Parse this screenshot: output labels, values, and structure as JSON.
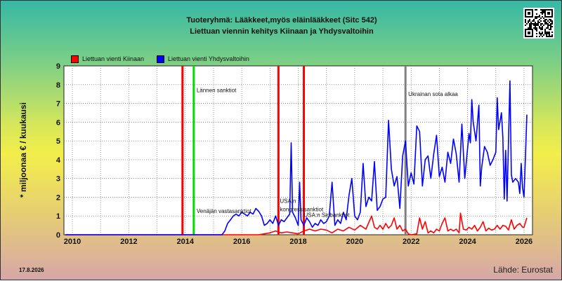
{
  "header": {
    "line1": "Tuoteryhmä: Lääkkeet,myös eläinlääkkeet (Sitc 542)",
    "line2": "Liettuan viennin kehitys  Kiinaan ja Yhdysvaltoihin"
  },
  "footer": {
    "date": "17.8.2026",
    "source": "Lähde: Eurostat"
  },
  "qr_icon": "qr-code-icon",
  "chart_data": {
    "type": "line",
    "ylabel": "* miljoonaa € / kuukausi",
    "xlabel": "",
    "xlim": [
      2009.7,
      2026.3
    ],
    "ylim": [
      0,
      9
    ],
    "yticks": [
      0,
      1,
      2,
      3,
      4,
      5,
      6,
      7,
      8,
      9
    ],
    "xticks": [
      "2010",
      "2012",
      "2014",
      "2016",
      "2018",
      "2020",
      "2022",
      "2024",
      "2026"
    ],
    "grid": true,
    "legend_position": "top-left",
    "series": [
      {
        "name": "Liettuan vienti Kiinaan",
        "color": "#ff0000",
        "points": [
          [
            2009.75,
            0
          ],
          [
            2016.6,
            0
          ],
          [
            2016.8,
            0.05
          ],
          [
            2017.0,
            0.1
          ],
          [
            2017.2,
            0.2
          ],
          [
            2017.4,
            0.1
          ],
          [
            2017.6,
            0.15
          ],
          [
            2017.8,
            0.1
          ],
          [
            2018.0,
            0.05
          ],
          [
            2018.2,
            0.2
          ],
          [
            2018.4,
            0.3
          ],
          [
            2018.6,
            0.2
          ],
          [
            2018.8,
            0.3
          ],
          [
            2019.0,
            0.25
          ],
          [
            2019.2,
            0.1
          ],
          [
            2019.4,
            0.3
          ],
          [
            2019.6,
            0.2
          ],
          [
            2019.8,
            0.4
          ],
          [
            2020.0,
            0.25
          ],
          [
            2020.2,
            0.5
          ],
          [
            2020.4,
            0.3
          ],
          [
            2020.6,
            1.0
          ],
          [
            2020.7,
            0.4
          ],
          [
            2020.8,
            0.3
          ],
          [
            2020.9,
            0.5
          ],
          [
            2021.0,
            0.3
          ],
          [
            2021.1,
            0.6
          ],
          [
            2021.2,
            0.35
          ],
          [
            2021.3,
            0.5
          ],
          [
            2021.4,
            0.9
          ],
          [
            2021.5,
            0.3
          ],
          [
            2021.6,
            0.5
          ],
          [
            2021.7,
            0.2
          ],
          [
            2021.8,
            0.3
          ],
          [
            2021.9,
            0.05
          ],
          [
            2022.0,
            0.0
          ],
          [
            2022.2,
            0.05
          ],
          [
            2022.3,
            0.9
          ],
          [
            2022.4,
            0.3
          ],
          [
            2022.5,
            0.7
          ],
          [
            2022.6,
            0.1
          ],
          [
            2022.7,
            0.2
          ],
          [
            2022.8,
            0.1
          ],
          [
            2022.9,
            0.3
          ],
          [
            2023.0,
            0.2
          ],
          [
            2023.1,
            0.6
          ],
          [
            2023.2,
            0.9
          ],
          [
            2023.3,
            0.2
          ],
          [
            2023.4,
            0.3
          ],
          [
            2023.5,
            0.2
          ],
          [
            2023.6,
            0.3
          ],
          [
            2023.7,
            0.1
          ],
          [
            2023.75,
            1.15
          ],
          [
            2023.85,
            0.3
          ],
          [
            2023.95,
            0.25
          ],
          [
            2024.05,
            0.4
          ],
          [
            2024.15,
            0.3
          ],
          [
            2024.25,
            0.5
          ],
          [
            2024.35,
            0.2
          ],
          [
            2024.45,
            0.4
          ],
          [
            2024.55,
            0.7
          ],
          [
            2024.65,
            0.2
          ],
          [
            2024.75,
            0.35
          ],
          [
            2024.85,
            0.25
          ],
          [
            2024.95,
            0.3
          ],
          [
            2025.05,
            0.5
          ],
          [
            2025.15,
            0.3
          ],
          [
            2025.25,
            0.5
          ],
          [
            2025.35,
            0.45
          ],
          [
            2025.45,
            0.25
          ],
          [
            2025.55,
            0.8
          ],
          [
            2025.65,
            0.3
          ],
          [
            2025.75,
            0.5
          ],
          [
            2025.85,
            0.6
          ],
          [
            2025.95,
            0.4
          ],
          [
            2026.0,
            0.4
          ],
          [
            2026.1,
            0.9
          ]
        ]
      },
      {
        "name": "Liettuan vienti Yhdysvaltoihin",
        "color": "#0000ff",
        "points": [
          [
            2009.75,
            0
          ],
          [
            2015.3,
            0
          ],
          [
            2015.4,
            0.2
          ],
          [
            2015.5,
            0.6
          ],
          [
            2015.6,
            0.8
          ],
          [
            2015.7,
            1.0
          ],
          [
            2015.8,
            1.1
          ],
          [
            2015.9,
            1.0
          ],
          [
            2016.0,
            1.2
          ],
          [
            2016.1,
            1.1
          ],
          [
            2016.2,
            1.0
          ],
          [
            2016.3,
            1.2
          ],
          [
            2016.4,
            1.1
          ],
          [
            2016.5,
            1.4
          ],
          [
            2016.6,
            1.25
          ],
          [
            2016.7,
            1.0
          ],
          [
            2016.8,
            0.5
          ],
          [
            2016.9,
            0.6
          ],
          [
            2017.0,
            0.8
          ],
          [
            2017.1,
            0.6
          ],
          [
            2017.2,
            1.0
          ],
          [
            2017.3,
            0.5
          ],
          [
            2017.4,
            0.8
          ],
          [
            2017.5,
            0.7
          ],
          [
            2017.6,
            0.9
          ],
          [
            2017.7,
            1.1
          ],
          [
            2017.75,
            4.9
          ],
          [
            2017.8,
            1.2
          ],
          [
            2017.9,
            0.9
          ],
          [
            2018.0,
            0.5
          ],
          [
            2018.05,
            2.8
          ],
          [
            2018.1,
            0.8
          ],
          [
            2018.2,
            0.5
          ],
          [
            2018.3,
            0.9
          ],
          [
            2018.4,
            0.7
          ],
          [
            2018.5,
            0.4
          ],
          [
            2018.6,
            0.6
          ],
          [
            2018.7,
            0.5
          ],
          [
            2018.8,
            0.8
          ],
          [
            2018.9,
            0.6
          ],
          [
            2019.0,
            0.7
          ],
          [
            2019.1,
            1.0
          ],
          [
            2019.2,
            2.8
          ],
          [
            2019.3,
            0.5
          ],
          [
            2019.4,
            0.8
          ],
          [
            2019.5,
            0.6
          ],
          [
            2019.6,
            1.2
          ],
          [
            2019.7,
            0.8
          ],
          [
            2019.8,
            2.1
          ],
          [
            2019.9,
            3.0
          ],
          [
            2020.0,
            1.0
          ],
          [
            2020.1,
            0.8
          ],
          [
            2020.2,
            1.2
          ],
          [
            2020.3,
            3.8
          ],
          [
            2020.4,
            1.5
          ],
          [
            2020.5,
            2.0
          ],
          [
            2020.6,
            1.8
          ],
          [
            2020.7,
            3.9
          ],
          [
            2020.8,
            1.3
          ],
          [
            2020.9,
            1.5
          ],
          [
            2021.0,
            1.9
          ],
          [
            2021.1,
            2.0
          ],
          [
            2021.2,
            6.1
          ],
          [
            2021.3,
            3.5
          ],
          [
            2021.4,
            2.6
          ],
          [
            2021.5,
            3.1
          ],
          [
            2021.6,
            1.4
          ],
          [
            2021.7,
            4.2
          ],
          [
            2021.8,
            5.0
          ],
          [
            2021.9,
            2.6
          ],
          [
            2022.0,
            3.3
          ],
          [
            2022.1,
            2.7
          ],
          [
            2022.2,
            5.8
          ],
          [
            2022.3,
            5.5
          ],
          [
            2022.4,
            2.6
          ],
          [
            2022.5,
            4.0
          ],
          [
            2022.6,
            4.2
          ],
          [
            2022.7,
            3.0
          ],
          [
            2022.8,
            4.3
          ],
          [
            2022.9,
            5.3
          ],
          [
            2023.0,
            3.1
          ],
          [
            2023.1,
            3.6
          ],
          [
            2023.2,
            2.8
          ],
          [
            2023.3,
            4.4
          ],
          [
            2023.4,
            3.8
          ],
          [
            2023.5,
            5.1
          ],
          [
            2023.6,
            4.3
          ],
          [
            2023.7,
            2.8
          ],
          [
            2023.8,
            5.9
          ],
          [
            2023.9,
            3.0
          ],
          [
            2024.0,
            4.6
          ],
          [
            2024.05,
            5.4
          ],
          [
            2024.1,
            4.9
          ],
          [
            2024.15,
            7.2
          ],
          [
            2024.2,
            6.0
          ],
          [
            2024.3,
            5.0
          ],
          [
            2024.4,
            6.9
          ],
          [
            2024.45,
            2.6
          ],
          [
            2024.5,
            3.6
          ],
          [
            2024.6,
            4.7
          ],
          [
            2024.7,
            4.4
          ],
          [
            2024.8,
            3.7
          ],
          [
            2024.9,
            4.0
          ],
          [
            2025.0,
            4.4
          ],
          [
            2025.05,
            7.3
          ],
          [
            2025.1,
            5.6
          ],
          [
            2025.2,
            6.5
          ],
          [
            2025.25,
            5.2
          ],
          [
            2025.3,
            1.9
          ],
          [
            2025.35,
            4.5
          ],
          [
            2025.4,
            1.8
          ],
          [
            2025.5,
            8.2
          ],
          [
            2025.55,
            3.2
          ],
          [
            2025.6,
            2.8
          ],
          [
            2025.7,
            3.0
          ],
          [
            2025.8,
            2.8
          ],
          [
            2025.85,
            2.2
          ],
          [
            2025.9,
            3.8
          ],
          [
            2025.95,
            2.5
          ],
          [
            2026.0,
            2.0
          ],
          [
            2026.05,
            4.2
          ],
          [
            2026.1,
            6.4
          ]
        ]
      }
    ],
    "events": [
      {
        "x": 2013.9,
        "color": "#ff0000",
        "label": ""
      },
      {
        "x": 2014.3,
        "color": "#00dd00",
        "label": "Lännen sanktiot",
        "label_y": 7.6
      },
      {
        "x": 2017.3,
        "color": "#ff0000",
        "label": "",
        "label_y": 1.8
      },
      {
        "x": 2018.2,
        "color": "#ff0000",
        "label": ""
      },
      {
        "x": 2021.8,
        "color": "#808080",
        "label": "Ukrainan sota alkaa",
        "label_y": 7.4
      }
    ],
    "annotations": [
      {
        "x": 2014.4,
        "y": 1.15,
        "text": "Venäjän vastasanktiot"
      },
      {
        "x": 2017.35,
        "y": 1.7,
        "text": "USA:n"
      },
      {
        "x": 2017.35,
        "y": 1.25,
        "text": "kongressisanktiot"
      },
      {
        "x": 2018.2,
        "y": 0.95,
        "text": "USA:n Siribanktiot"
      }
    ]
  }
}
